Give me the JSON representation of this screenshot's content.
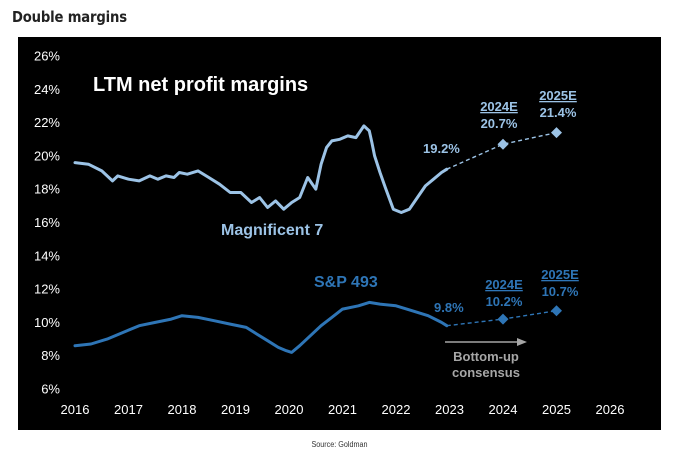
{
  "page": {
    "heading": "Double margins",
    "source": "Source: Goldman"
  },
  "chart_data": {
    "type": "line",
    "title": "LTM net profit margins",
    "xlabel": "",
    "ylabel": "",
    "xlim": [
      2016,
      2026
    ],
    "ylim": [
      6,
      26
    ],
    "x_ticks": [
      "2016",
      "2017",
      "2018",
      "2019",
      "2020",
      "2021",
      "2022",
      "2023",
      "2024",
      "2025",
      "2026"
    ],
    "y_ticks": [
      "6%",
      "8%",
      "10%",
      "12%",
      "14%",
      "16%",
      "18%",
      "20%",
      "22%",
      "24%",
      "26%"
    ],
    "grid": false,
    "colors": {
      "background": "#000000",
      "mag7": "#9cc3e6",
      "sp493": "#2e75b6",
      "text": "#ffffff",
      "arrow": "#a6a6a6"
    },
    "series": [
      {
        "name": "Magnificent 7",
        "label": "Magnificent 7",
        "color": "#9cc3e6",
        "x": [
          2016.0,
          2016.25,
          2016.5,
          2016.7,
          2016.8,
          2017.0,
          2017.2,
          2017.4,
          2017.55,
          2017.7,
          2017.85,
          2017.95,
          2018.1,
          2018.3,
          2018.5,
          2018.7,
          2018.9,
          2019.1,
          2019.3,
          2019.45,
          2019.6,
          2019.75,
          2019.9,
          2020.05,
          2020.2,
          2020.35,
          2020.5,
          2020.6,
          2020.7,
          2020.8,
          2020.95,
          2021.1,
          2021.25,
          2021.4,
          2021.5,
          2021.55,
          2021.6,
          2021.7,
          2021.8,
          2021.95,
          2022.1,
          2022.25,
          2022.4,
          2022.55,
          2022.7,
          2022.85,
          2022.95
        ],
        "values": [
          19.6,
          19.5,
          19.1,
          18.5,
          18.8,
          18.6,
          18.5,
          18.8,
          18.6,
          18.8,
          18.7,
          19.0,
          18.9,
          19.1,
          18.7,
          18.3,
          17.8,
          17.8,
          17.2,
          17.5,
          16.9,
          17.3,
          16.8,
          17.2,
          17.5,
          18.7,
          18.0,
          19.5,
          20.5,
          20.9,
          21.0,
          21.2,
          21.1,
          21.8,
          21.5,
          20.8,
          20.0,
          19.0,
          18.1,
          16.8,
          16.6,
          16.8,
          17.5,
          18.2,
          18.6,
          19.0,
          19.2
        ],
        "forecast": [
          {
            "year": "2024E",
            "x": 2024,
            "value": 20.7,
            "label": "20.7%"
          },
          {
            "year": "2025E",
            "x": 2025,
            "value": 21.4,
            "label": "21.4%"
          }
        ],
        "last_actual_label": "19.2%"
      },
      {
        "name": "S&P 493",
        "label": "S&P 493",
        "color": "#2e75b6",
        "x": [
          2016.0,
          2016.3,
          2016.6,
          2016.9,
          2017.2,
          2017.5,
          2017.8,
          2018.0,
          2018.3,
          2018.6,
          2018.9,
          2019.2,
          2019.4,
          2019.6,
          2019.8,
          2019.95,
          2020.05,
          2020.2,
          2020.4,
          2020.6,
          2020.8,
          2021.0,
          2021.3,
          2021.5,
          2021.7,
          2022.0,
          2022.3,
          2022.6,
          2022.85,
          2022.95
        ],
        "values": [
          8.6,
          8.7,
          9.0,
          9.4,
          9.8,
          10.0,
          10.2,
          10.4,
          10.3,
          10.1,
          9.9,
          9.7,
          9.3,
          8.9,
          8.5,
          8.3,
          8.2,
          8.6,
          9.2,
          9.8,
          10.3,
          10.8,
          11.0,
          11.2,
          11.1,
          11.0,
          10.7,
          10.4,
          10.0,
          9.8
        ],
        "forecast": [
          {
            "year": "2024E",
            "x": 2024,
            "value": 10.2,
            "label": "10.2%"
          },
          {
            "year": "2025E",
            "x": 2025,
            "value": 10.7,
            "label": "10.7%"
          }
        ],
        "last_actual_label": "9.8%"
      }
    ],
    "annotations": {
      "arrow_text_1": "Bottom-up",
      "arrow_text_2": "consensus"
    }
  }
}
